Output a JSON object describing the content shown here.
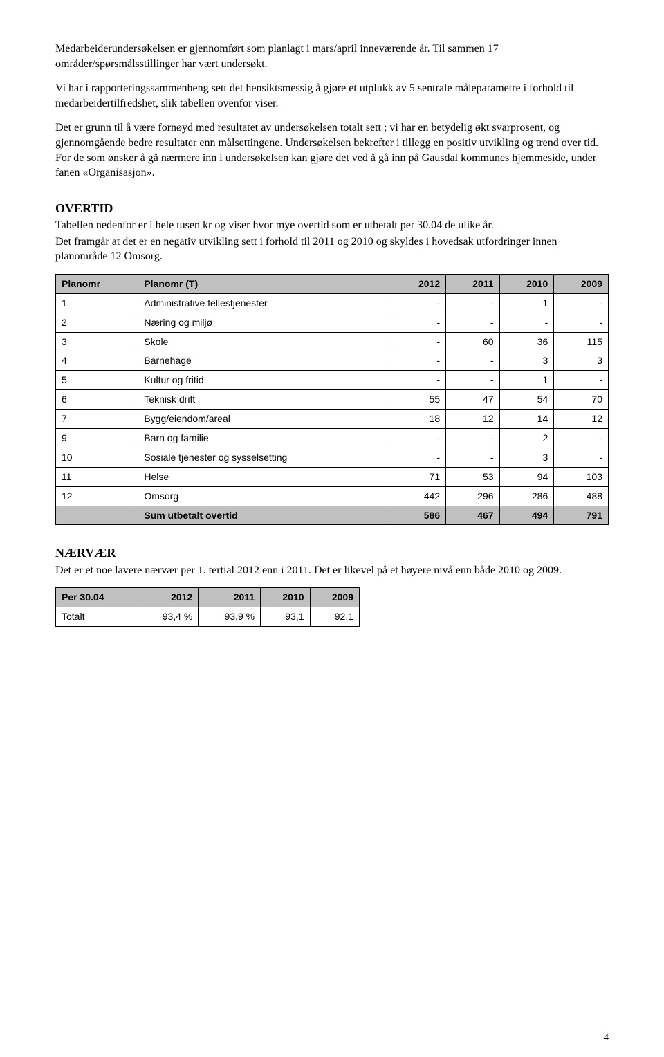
{
  "paragraphs": {
    "p1": "Medarbeiderundersøkelsen er gjennomført som planlagt i mars/april inneværende år. Til sammen 17 områder/spørsmålsstillinger har vært undersøkt.",
    "p2": "Vi har i rapporteringssammenheng sett det hensiktsmessig å gjøre et utplukk av 5 sentrale måleparametre i forhold til medarbeidertilfredshet, slik tabellen ovenfor viser.",
    "p3": "Det er grunn til å være fornøyd med resultatet av undersøkelsen totalt sett ; vi har en betydelig økt svarprosent, og gjennomgående bedre resultater enn målsettingene. Undersøkelsen bekrefter i tillegg en positiv utvikling og trend over tid. For de som ønsker å gå nærmere inn i undersøkelsen kan gjøre det ved å gå inn på Gausdal kommunes hjemmeside, under fanen «Organisasjon»."
  },
  "overtid": {
    "heading": "OVERTID",
    "intro1": "Tabellen nedenfor er i hele tusen kr og viser hvor mye overtid som er utbetalt per 30.04 de ulike år.",
    "intro2": "Det framgår at det er en negativ utvikling sett i forhold til 2011 og 2010 og skyldes i hovedsak utfordringer innen planområde 12 Omsorg.",
    "columns": [
      "Planomr",
      "Planomr (T)",
      "2012",
      "2011",
      "2010",
      "2009"
    ],
    "rows": [
      [
        "1",
        "Administrative fellestjenester",
        "-",
        "-",
        "1",
        "-"
      ],
      [
        "2",
        "Næring og miljø",
        "-",
        "-",
        "-",
        "-"
      ],
      [
        "3",
        "Skole",
        "-",
        "60",
        "36",
        "115"
      ],
      [
        "4",
        "Barnehage",
        "-",
        "-",
        "3",
        "3"
      ],
      [
        "5",
        "Kultur og fritid",
        "-",
        "-",
        "1",
        "-"
      ],
      [
        "6",
        "Teknisk drift",
        "55",
        "47",
        "54",
        "70"
      ],
      [
        "7",
        "Bygg/eiendom/areal",
        "18",
        "12",
        "14",
        "12"
      ],
      [
        "9",
        "Barn og familie",
        "-",
        "-",
        "2",
        "-"
      ],
      [
        "10",
        "Sosiale tjenester og sysselsetting",
        "-",
        "-",
        "3",
        "-"
      ],
      [
        "11",
        "Helse",
        "71",
        "53",
        "94",
        "103"
      ],
      [
        "12",
        "Omsorg",
        "442",
        "296",
        "286",
        "488"
      ]
    ],
    "sum_label": "Sum utbetalt overtid",
    "sum_values": [
      "586",
      "467",
      "494",
      "791"
    ]
  },
  "naervaer": {
    "heading": "NÆRVÆR",
    "intro": "Det er et noe lavere nærvær per 1. tertial 2012 enn i 2011. Det er likevel på et høyere nivå enn både 2010 og 2009.",
    "columns": [
      "Per 30.04",
      "2012",
      "2011",
      "2010",
      "2009"
    ],
    "row_label": "Totalt",
    "row_values": [
      "93,4 %",
      "93,9 %",
      "93,1",
      "92,1"
    ]
  },
  "page_number": "4",
  "style": {
    "header_bg": "#c0c0c0",
    "border_color": "#000000",
    "font_table": "Arial",
    "font_body": "Times New Roman"
  }
}
